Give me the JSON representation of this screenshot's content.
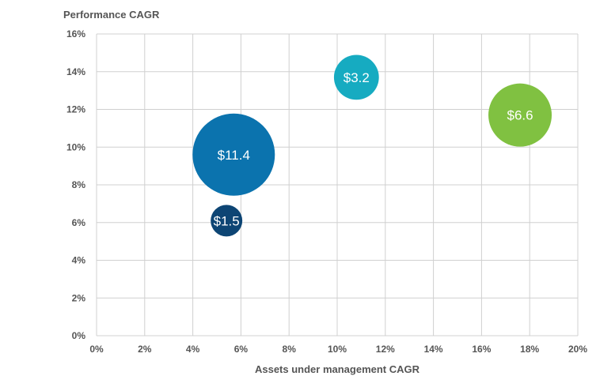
{
  "chart_data": {
    "type": "scatter",
    "ylabel": "Performance CAGR",
    "xlabel": "Assets under management CAGR",
    "xlim": [
      0,
      20
    ],
    "ylim": [
      0,
      16
    ],
    "x_ticks": [
      "0%",
      "2%",
      "4%",
      "6%",
      "8%",
      "10%",
      "12%",
      "14%",
      "16%",
      "18%",
      "20%"
    ],
    "y_ticks": [
      "0%",
      "2%",
      "4%",
      "6%",
      "8%",
      "10%",
      "12%",
      "14%",
      "16%"
    ],
    "x_tick_values": [
      0,
      2,
      4,
      6,
      8,
      10,
      12,
      14,
      16,
      18,
      20
    ],
    "y_tick_values": [
      0,
      2,
      4,
      6,
      8,
      10,
      12,
      14,
      16
    ],
    "grid": true,
    "legend": "none",
    "points": [
      {
        "x": 5.7,
        "y": 9.6,
        "size": 11.4,
        "label": "$11.4",
        "color": "#0b73ae"
      },
      {
        "x": 5.4,
        "y": 6.1,
        "size": 1.5,
        "label": "$1.5",
        "color": "#0d4574"
      },
      {
        "x": 10.8,
        "y": 13.7,
        "size": 3.2,
        "label": "$3.2",
        "color": "#16abc1"
      },
      {
        "x": 17.6,
        "y": 11.7,
        "size": 6.6,
        "label": "$6.6",
        "color": "#80c141"
      }
    ]
  }
}
